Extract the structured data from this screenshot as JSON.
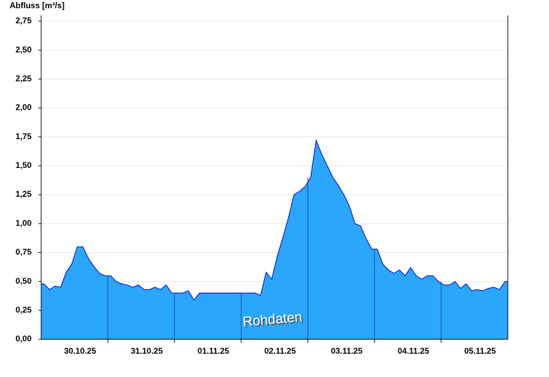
{
  "chart_data": {
    "type": "area",
    "title": "Abfluss [m³/s]",
    "annotation": "Rohdaten",
    "categories": [
      null,
      null,
      null,
      null,
      null,
      null,
      "30.10.25",
      null,
      null,
      null,
      null,
      null,
      null,
      null,
      null,
      null,
      null,
      null,
      "31.10.25",
      null,
      null,
      null,
      null,
      null,
      null,
      null,
      null,
      null,
      null,
      null,
      "01.11.25",
      null,
      null,
      null,
      null,
      null,
      null,
      null,
      null,
      null,
      null,
      null,
      "02.11.25",
      null,
      null,
      null,
      null,
      null,
      null,
      null,
      null,
      null,
      null,
      null,
      "03.11.25",
      null,
      null,
      null,
      null,
      null,
      null,
      null,
      null,
      null,
      null,
      null,
      "04.11.25",
      null,
      null,
      null,
      null,
      null,
      null,
      null,
      null,
      null,
      null,
      null,
      "05.11.25",
      null,
      null,
      null,
      null,
      null
    ],
    "values": [
      0.48,
      0.43,
      0.46,
      0.45,
      0.58,
      0.65,
      0.8,
      0.8,
      0.7,
      0.63,
      0.57,
      0.55,
      0.55,
      0.5,
      0.48,
      0.47,
      0.45,
      0.47,
      0.43,
      0.43,
      0.45,
      0.43,
      0.47,
      0.4,
      0.4,
      0.4,
      0.42,
      0.34,
      0.4,
      0.4,
      0.4,
      0.4,
      0.4,
      0.4,
      0.4,
      0.4,
      0.4,
      0.4,
      0.4,
      0.38,
      0.58,
      0.52,
      0.72,
      0.88,
      1.05,
      1.25,
      1.28,
      1.32,
      1.4,
      1.72,
      1.6,
      1.5,
      1.4,
      1.33,
      1.25,
      1.15,
      1.0,
      0.98,
      0.87,
      0.78,
      0.78,
      0.65,
      0.6,
      0.57,
      0.6,
      0.55,
      0.62,
      0.55,
      0.52,
      0.55,
      0.55,
      0.5,
      0.47,
      0.47,
      0.5,
      0.44,
      0.48,
      0.42,
      0.43,
      0.42,
      0.44,
      0.45,
      0.43,
      0.5
    ],
    "fill_color": "#2aa6fc",
    "line_color": "#0000c8",
    "ylim": [
      0,
      2.8
    ],
    "yticks": [
      {
        "value": 0,
        "label": "0,00"
      },
      {
        "value": 0.25,
        "label": "0,25"
      },
      {
        "value": 0.5,
        "label": "0,50"
      },
      {
        "value": 0.75,
        "label": "0,75"
      },
      {
        "value": 1,
        "label": "1,00"
      },
      {
        "value": 1.25,
        "label": "1,25"
      },
      {
        "value": 1.5,
        "label": "1,50"
      },
      {
        "value": 1.75,
        "label": "1,75"
      },
      {
        "value": 2,
        "label": "2,00"
      },
      {
        "value": 2.25,
        "label": "2,25"
      },
      {
        "value": 2.5,
        "label": "2,50"
      },
      {
        "value": 2.75,
        "label": "2,75"
      }
    ],
    "grid": true
  }
}
